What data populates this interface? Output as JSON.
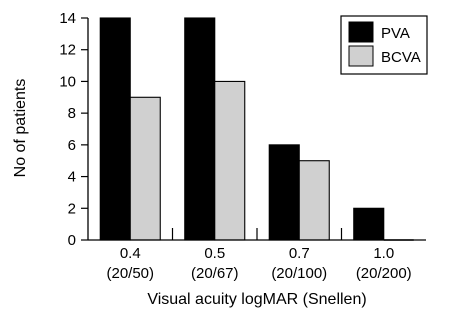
{
  "chart_data": {
    "type": "bar",
    "categories": [
      [
        "0.4",
        "(20/50)"
      ],
      [
        "0.5",
        "(20/67)"
      ],
      [
        "0.7",
        "(20/100)"
      ],
      [
        "1.0",
        "(20/200)"
      ]
    ],
    "series": [
      {
        "name": "PVA",
        "values": [
          14,
          14,
          6,
          2
        ],
        "color": "#000000"
      },
      {
        "name": "BCVA",
        "values": [
          9,
          10,
          5,
          0
        ],
        "color": "#d0d0d0"
      }
    ],
    "xlabel": "Visual acuity logMAR (Snellen)",
    "ylabel": "No of patients",
    "ylim": [
      0,
      14
    ],
    "yticks": [
      0,
      2,
      4,
      6,
      8,
      10,
      12,
      14
    ],
    "legend_position": "top-right",
    "grid": false
  }
}
